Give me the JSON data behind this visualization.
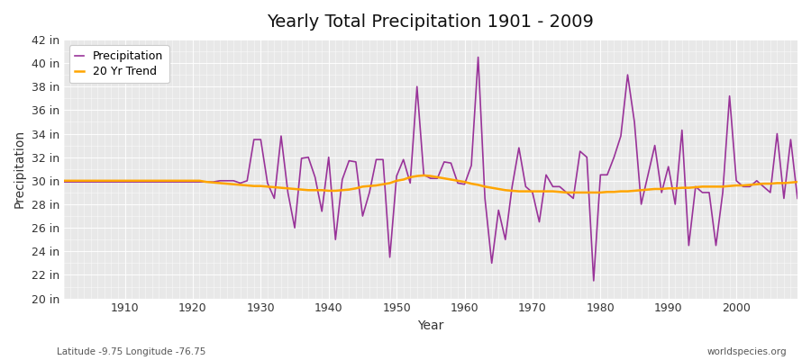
{
  "title": "Yearly Total Precipitation 1901 - 2009",
  "xlabel": "Year",
  "ylabel": "Precipitation",
  "fig_bg_color": "#ffffff",
  "plot_bg_color": "#e8e8e8",
  "grid_color": "#ffffff",
  "precip_color": "#993399",
  "trend_color": "#FFA500",
  "legend_labels": [
    "Precipitation",
    "20 Yr Trend"
  ],
  "ylim": [
    20,
    42
  ],
  "yticks": [
    20,
    22,
    24,
    26,
    28,
    30,
    32,
    34,
    36,
    38,
    40,
    42
  ],
  "xlim": [
    1901,
    2009
  ],
  "xticks": [
    1910,
    1920,
    1930,
    1940,
    1950,
    1960,
    1970,
    1980,
    1990,
    2000
  ],
  "footer_left": "Latitude -9.75 Longitude -76.75",
  "footer_right": "worldspecies.org",
  "years": [
    1901,
    1902,
    1903,
    1904,
    1905,
    1906,
    1907,
    1908,
    1909,
    1910,
    1911,
    1912,
    1913,
    1914,
    1915,
    1916,
    1917,
    1918,
    1919,
    1920,
    1921,
    1922,
    1923,
    1924,
    1925,
    1926,
    1927,
    1928,
    1929,
    1930,
    1931,
    1932,
    1933,
    1934,
    1935,
    1936,
    1937,
    1938,
    1939,
    1940,
    1941,
    1942,
    1943,
    1944,
    1945,
    1946,
    1947,
    1948,
    1949,
    1950,
    1951,
    1952,
    1953,
    1954,
    1955,
    1956,
    1957,
    1958,
    1959,
    1960,
    1961,
    1962,
    1963,
    1964,
    1965,
    1966,
    1967,
    1968,
    1969,
    1970,
    1971,
    1972,
    1973,
    1974,
    1975,
    1976,
    1977,
    1978,
    1979,
    1980,
    1981,
    1982,
    1983,
    1984,
    1985,
    1986,
    1987,
    1988,
    1989,
    1990,
    1991,
    1992,
    1993,
    1994,
    1995,
    1996,
    1997,
    1998,
    1999,
    2000,
    2001,
    2002,
    2003,
    2004,
    2005,
    2006,
    2007,
    2008,
    2009
  ],
  "precip": [
    29.9,
    29.9,
    29.9,
    29.9,
    29.9,
    29.9,
    29.9,
    29.9,
    29.9,
    29.9,
    29.9,
    29.9,
    29.9,
    29.9,
    29.9,
    29.9,
    29.9,
    29.9,
    29.9,
    29.9,
    29.9,
    29.9,
    29.9,
    30.0,
    30.0,
    30.0,
    29.8,
    30.0,
    33.5,
    33.5,
    29.8,
    28.5,
    33.8,
    29.0,
    26.0,
    31.9,
    32.0,
    30.3,
    27.4,
    32.0,
    25.0,
    30.1,
    31.7,
    31.6,
    27.0,
    29.0,
    31.8,
    31.8,
    23.5,
    30.4,
    31.8,
    29.8,
    38.0,
    30.5,
    30.2,
    30.2,
    31.6,
    31.5,
    29.8,
    29.7,
    31.3,
    40.5,
    28.5,
    23.0,
    27.5,
    25.0,
    29.5,
    32.8,
    29.5,
    29.0,
    26.5,
    30.5,
    29.5,
    29.5,
    29.0,
    28.5,
    32.5,
    32.0,
    21.5,
    30.5,
    30.5,
    32.0,
    33.8,
    39.0,
    35.0,
    28.0,
    30.5,
    33.0,
    29.0,
    31.2,
    28.0,
    34.3,
    24.5,
    29.5,
    29.0,
    29.0,
    24.5,
    29.0,
    37.2,
    30.0,
    29.5,
    29.5,
    30.0,
    29.5,
    29.0,
    34.0,
    28.5,
    33.5,
    28.5
  ],
  "trend": [
    30.0,
    30.0,
    30.0,
    30.0,
    30.0,
    30.0,
    30.0,
    30.0,
    30.0,
    30.0,
    30.0,
    30.0,
    30.0,
    30.0,
    30.0,
    30.0,
    30.0,
    30.0,
    30.0,
    30.0,
    30.0,
    29.9,
    29.85,
    29.8,
    29.75,
    29.7,
    29.65,
    29.6,
    29.55,
    29.55,
    29.5,
    29.45,
    29.4,
    29.35,
    29.3,
    29.25,
    29.2,
    29.2,
    29.2,
    29.15,
    29.15,
    29.2,
    29.25,
    29.35,
    29.5,
    29.55,
    29.6,
    29.7,
    29.8,
    30.0,
    30.1,
    30.3,
    30.4,
    30.45,
    30.4,
    30.3,
    30.2,
    30.1,
    30.0,
    29.9,
    29.75,
    29.65,
    29.5,
    29.4,
    29.3,
    29.2,
    29.15,
    29.1,
    29.1,
    29.1,
    29.1,
    29.1,
    29.1,
    29.05,
    29.0,
    29.0,
    29.0,
    29.0,
    29.0,
    29.0,
    29.05,
    29.05,
    29.1,
    29.1,
    29.15,
    29.2,
    29.25,
    29.3,
    29.3,
    29.35,
    29.35,
    29.4,
    29.4,
    29.45,
    29.5,
    29.5,
    29.5,
    29.5,
    29.55,
    29.6,
    29.6,
    29.65,
    29.7,
    29.75,
    29.75,
    29.8,
    29.8,
    29.85,
    29.9
  ]
}
